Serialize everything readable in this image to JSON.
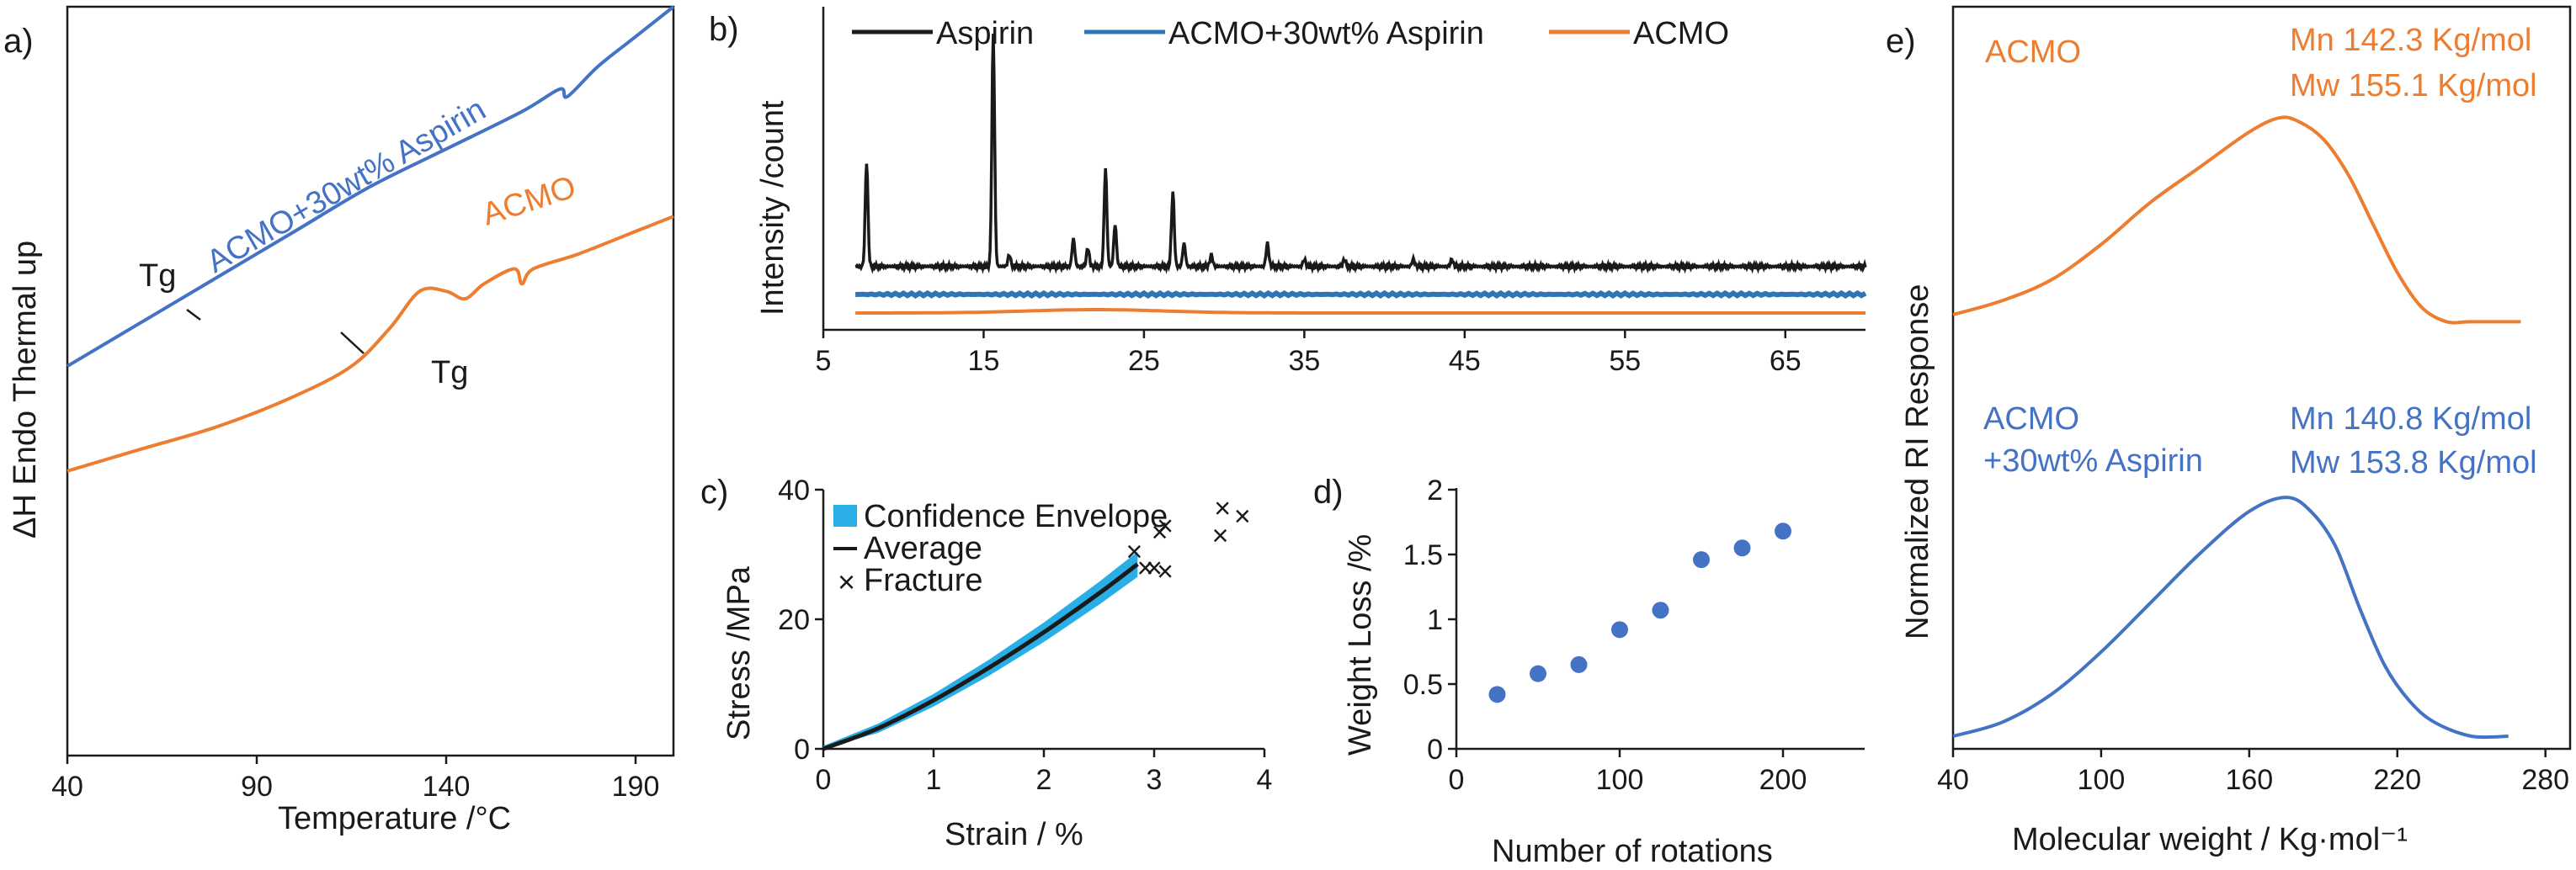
{
  "figure": {
    "panel_a": "a)",
    "panel_b": "b)",
    "panel_c": "c)",
    "panel_d": "d)",
    "panel_e": "e)"
  },
  "colors": {
    "blue": "#4472c4",
    "orange": "#ed7d31",
    "xrd_blue": "#2e75b6",
    "black": "#1a1a1a",
    "cyan": "#29aee6",
    "marker_blue": "#4472c4"
  },
  "chart_data": [
    {
      "id": "a",
      "type": "line",
      "xlabel": "Temperature /°C",
      "ylabel": "ΔH Endo Thermal up",
      "xlim": [
        40,
        200
      ],
      "xticks": [
        40,
        90,
        140,
        190
      ],
      "series": [
        {
          "name": "ACMO+30wt% Aspirin",
          "color": "#4472c4",
          "x": [
            40,
            60,
            80,
            100,
            120,
            140,
            160,
            170,
            172,
            180,
            190,
            200
          ],
          "y": [
            0.52,
            0.58,
            0.64,
            0.7,
            0.76,
            0.81,
            0.86,
            0.89,
            0.88,
            0.92,
            0.96,
            1.0
          ]
        },
        {
          "name": "ACMO",
          "color": "#ed7d31",
          "x": [
            40,
            60,
            80,
            100,
            115,
            125,
            133,
            140,
            145,
            150,
            158,
            160,
            163,
            175,
            190,
            200
          ],
          "y": [
            0.38,
            0.41,
            0.44,
            0.48,
            0.52,
            0.57,
            0.62,
            0.62,
            0.61,
            0.63,
            0.65,
            0.63,
            0.65,
            0.67,
            0.7,
            0.72
          ]
        }
      ],
      "annotations": [
        {
          "text": "ACMO+30wt% Aspirin"
        },
        {
          "text": "ACMO"
        },
        {
          "text": "Tg"
        },
        {
          "text": "Tg"
        }
      ]
    },
    {
      "id": "b",
      "type": "line",
      "xlabel": "",
      "ylabel": "Intensity /count",
      "xlim": [
        5,
        70
      ],
      "xticks": [
        5,
        15,
        25,
        35,
        45,
        55,
        65
      ],
      "legend": [
        "Aspirin",
        "ACMO+30wt% Aspirin",
        "ACMO"
      ],
      "series": [
        {
          "name": "Aspirin",
          "color": "#1a1a1a",
          "baseline": 0.2,
          "peaks": [
            [
              7.7,
              0.45
            ],
            [
              15.6,
              1.0
            ],
            [
              16.6,
              0.05
            ],
            [
              20.6,
              0.12
            ],
            [
              21.5,
              0.08
            ],
            [
              22.6,
              0.42
            ],
            [
              23.2,
              0.18
            ],
            [
              26.8,
              0.32
            ],
            [
              27.5,
              0.1
            ],
            [
              29.2,
              0.05
            ],
            [
              32.7,
              0.1
            ],
            [
              35.0,
              0.03
            ],
            [
              37.5,
              0.03
            ],
            [
              41.8,
              0.03
            ],
            [
              44.2,
              0.03
            ]
          ]
        },
        {
          "name": "ACMO+30wt% Aspirin",
          "color": "#2e75b6",
          "level": 0.08
        },
        {
          "name": "ACMO",
          "color": "#ed7d31",
          "level": 0.0
        }
      ]
    },
    {
      "id": "c",
      "type": "line",
      "xlabel": "Strain / %",
      "ylabel": "Stress /MPa",
      "xlim": [
        0,
        4
      ],
      "ylim": [
        0,
        40
      ],
      "xticks": [
        0,
        1,
        2,
        3,
        4
      ],
      "yticks": [
        0,
        20,
        40
      ],
      "legend": [
        "Confidence Envelope",
        "Average",
        "Fracture"
      ],
      "series": [
        {
          "name": "Average",
          "color": "#1a1a1a",
          "x": [
            0,
            0.5,
            1.0,
            1.5,
            2.0,
            2.5,
            2.85
          ],
          "y": [
            0.0,
            3.2,
            7.5,
            12.5,
            18.0,
            24.0,
            28.5
          ]
        },
        {
          "name": "Confidence Envelope",
          "color": "#29aee6",
          "halfwidth": 1.5
        }
      ],
      "fracture_points": [
        [
          2.82,
          30.5
        ],
        [
          2.92,
          28.0
        ],
        [
          3.0,
          28.0
        ],
        [
          3.1,
          27.5
        ],
        [
          3.05,
          33.5
        ],
        [
          3.1,
          34.5
        ],
        [
          3.6,
          33.0
        ],
        [
          3.62,
          37.2
        ],
        [
          3.8,
          36.0
        ]
      ]
    },
    {
      "id": "d",
      "type": "scatter",
      "xlabel": "Number of rotations",
      "ylabel": "Weight Loss /%",
      "xlim": [
        0,
        250
      ],
      "ylim": [
        0,
        2
      ],
      "xticks": [
        0,
        100,
        200
      ],
      "yticks": [
        0,
        0.5,
        1,
        1.5,
        2
      ],
      "ytick_labels": [
        "0",
        "0.5",
        "1",
        "1.5",
        "2"
      ],
      "x": [
        25,
        50,
        75,
        100,
        125,
        150,
        175,
        200
      ],
      "y": [
        0.42,
        0.58,
        0.65,
        0.92,
        1.07,
        1.46,
        1.55,
        1.68
      ]
    },
    {
      "id": "e",
      "type": "line",
      "xlabel": "Molecular weight / Kg·mol⁻¹",
      "ylabel": "Normalized RI Response",
      "xlim": [
        40,
        290
      ],
      "xticks": [
        40,
        100,
        160,
        220,
        280
      ],
      "series": [
        {
          "name": "ACMO",
          "color": "#ed7d31",
          "x": [
            40,
            60,
            80,
            100,
            120,
            140,
            160,
            172,
            180,
            190,
            200,
            210,
            220,
            230,
            240,
            250,
            270
          ],
          "y": [
            0.6,
            0.62,
            0.65,
            0.7,
            0.76,
            0.81,
            0.86,
            0.88,
            0.875,
            0.85,
            0.8,
            0.73,
            0.66,
            0.61,
            0.59,
            0.59,
            0.59
          ]
        },
        {
          "name": "ACMO +30wt% Aspirin",
          "color": "#4472c4",
          "x": [
            40,
            60,
            80,
            100,
            120,
            140,
            160,
            175,
            185,
            195,
            205,
            215,
            225,
            235,
            250,
            265
          ],
          "y": [
            0.0,
            0.02,
            0.06,
            0.12,
            0.19,
            0.26,
            0.32,
            0.34,
            0.32,
            0.27,
            0.18,
            0.1,
            0.05,
            0.02,
            0.0,
            0.0
          ]
        }
      ],
      "annotations": {
        "acmo": "ACMO",
        "acmo_mn": "Mn 142.3 Kg/mol",
        "acmo_mw": "Mw 155.1 Kg/mol",
        "blend1": "ACMO",
        "blend2": "+30wt% Aspirin",
        "blend_mn": "Mn 140.8 Kg/mol",
        "blend_mw": "Mw 153.8 Kg/mol"
      }
    }
  ]
}
